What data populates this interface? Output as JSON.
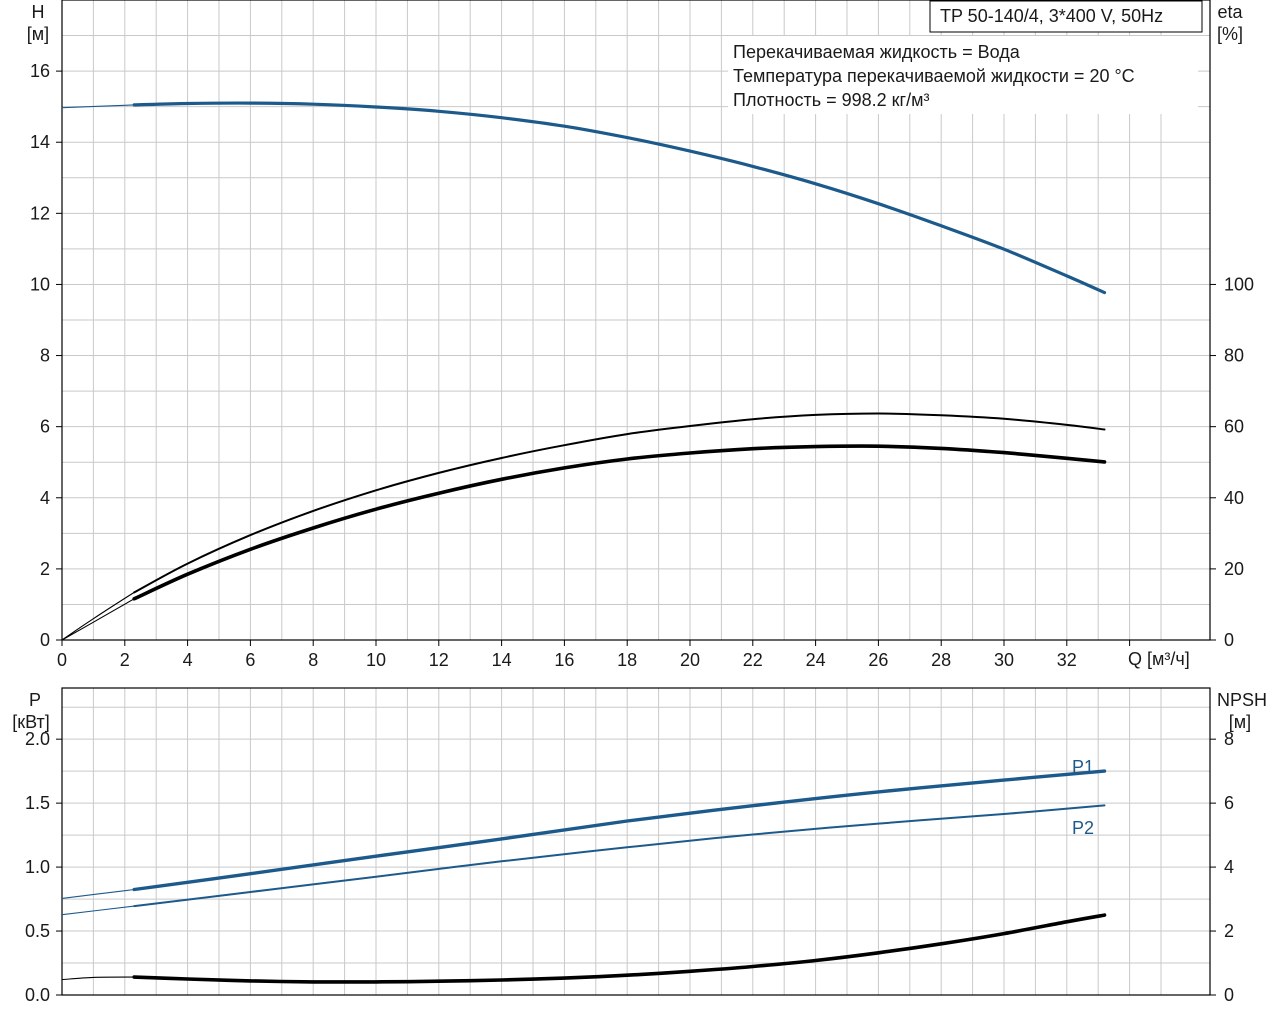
{
  "title_box": "TP 50-140/4, 3*400 V, 50Hz",
  "info": {
    "line1": "Перекачиваемая жидкость = Вода",
    "line2": "Температура перекачиваемой жидкости = 20 °C",
    "line3": "Плотность = 998.2 кг/м³"
  },
  "colors": {
    "blue": "#1d5a8c",
    "black": "#000000",
    "grid": "#c9c9c9"
  },
  "chart_data": [
    {
      "type": "line",
      "xlabel": "Q [м³/ч]",
      "ylabel_left_1": "H",
      "ylabel_left_2": "[м]",
      "ylabel_right_1": "eta",
      "ylabel_right_2": "[%]",
      "xlim": [
        0,
        36
      ],
      "ylim_left": [
        0,
        18
      ],
      "ylim_right": [
        0,
        180
      ],
      "x_ticks": [
        "0",
        "2",
        "4",
        "6",
        "8",
        "10",
        "12",
        "14",
        "16",
        "18",
        "20",
        "22",
        "24",
        "26",
        "28",
        "30",
        "32"
      ],
      "y_left_ticks": [
        "0",
        "2",
        "4",
        "6",
        "8",
        "10",
        "12",
        "14",
        "16"
      ],
      "y_right_ticks": [
        "0",
        "20",
        "40",
        "60",
        "80",
        "100"
      ],
      "grid": true,
      "series": [
        {
          "axis": "left",
          "color": "#1d5a8c",
          "width": 3.2,
          "thin_prefix": [
            [
              0,
              14.97
            ],
            [
              2.3,
              15.05
            ]
          ],
          "points": [
            [
              2.3,
              15.05
            ],
            [
              4,
              15.09
            ],
            [
              6,
              15.1
            ],
            [
              8,
              15.07
            ],
            [
              10,
              14.99
            ],
            [
              12,
              14.87
            ],
            [
              14,
              14.69
            ],
            [
              16,
              14.45
            ],
            [
              18,
              14.13
            ],
            [
              20,
              13.75
            ],
            [
              22,
              13.32
            ],
            [
              24,
              12.83
            ],
            [
              26,
              12.27
            ],
            [
              28,
              11.65
            ],
            [
              30,
              10.99
            ],
            [
              32,
              10.24
            ],
            [
              33.2,
              9.77
            ]
          ]
        },
        {
          "axis": "right",
          "color": "#000000",
          "width": 2.0,
          "thin_prefix": [
            [
              0,
              0
            ],
            [
              1,
              6
            ],
            [
              2.3,
              13.4
            ]
          ],
          "points": [
            [
              2.3,
              13.4
            ],
            [
              4,
              21.5
            ],
            [
              6,
              29.5
            ],
            [
              8,
              36.3
            ],
            [
              10,
              42.1
            ],
            [
              12,
              47.0
            ],
            [
              14,
              51.2
            ],
            [
              16,
              54.8
            ],
            [
              18,
              57.9
            ],
            [
              20,
              60.2
            ],
            [
              22,
              62.1
            ],
            [
              24,
              63.3
            ],
            [
              26,
              63.7
            ],
            [
              28,
              63.2
            ],
            [
              30,
              62.2
            ],
            [
              32,
              60.5
            ],
            [
              33.2,
              59.2
            ]
          ]
        },
        {
          "axis": "right",
          "color": "#000000",
          "width": 3.6,
          "thin_prefix": [
            [
              0,
              0
            ],
            [
              1,
              5
            ],
            [
              2.3,
              11.6
            ]
          ],
          "points": [
            [
              2.3,
              11.6
            ],
            [
              4,
              18.5
            ],
            [
              6,
              25.5
            ],
            [
              8,
              31.5
            ],
            [
              10,
              36.8
            ],
            [
              12,
              41.3
            ],
            [
              14,
              45.2
            ],
            [
              16,
              48.4
            ],
            [
              18,
              50.9
            ],
            [
              20,
              52.6
            ],
            [
              22,
              53.8
            ],
            [
              24,
              54.4
            ],
            [
              26,
              54.5
            ],
            [
              28,
              53.9
            ],
            [
              30,
              52.7
            ],
            [
              32,
              51.1
            ],
            [
              33.2,
              50.1
            ]
          ]
        }
      ]
    },
    {
      "type": "line",
      "ylabel_left_1": "P",
      "ylabel_left_2": "[кВт]",
      "ylabel_right_1": "NPSH",
      "ylabel_right_2": "[м]",
      "xlim": [
        0,
        36
      ],
      "ylim_left": [
        0,
        2.4
      ],
      "ylim_right": [
        0,
        9.6
      ],
      "y_left_ticks": [
        "0.0",
        "0.5",
        "1.0",
        "1.5",
        "2.0"
      ],
      "y_right_ticks": [
        "0",
        "2",
        "4",
        "6",
        "8"
      ],
      "grid": true,
      "series": [
        {
          "name": "P1",
          "axis": "left",
          "color": "#1d5a8c",
          "width": 3.4,
          "thin_prefix": [
            [
              0,
              0.755
            ],
            [
              2.3,
              0.825
            ]
          ],
          "points": [
            [
              2.3,
              0.825
            ],
            [
              6,
              0.948
            ],
            [
              10,
              1.085
            ],
            [
              14,
              1.22
            ],
            [
              18,
              1.36
            ],
            [
              22,
              1.48
            ],
            [
              26,
              1.588
            ],
            [
              30,
              1.68
            ],
            [
              33.2,
              1.75
            ]
          ]
        },
        {
          "name": "P2",
          "axis": "left",
          "color": "#1d5a8c",
          "width": 2.0,
          "thin_prefix": [
            [
              0,
              0.628
            ],
            [
              2.3,
              0.695
            ]
          ],
          "points": [
            [
              2.3,
              0.695
            ],
            [
              6,
              0.805
            ],
            [
              10,
              0.925
            ],
            [
              14,
              1.045
            ],
            [
              18,
              1.155
            ],
            [
              22,
              1.255
            ],
            [
              26,
              1.34
            ],
            [
              30,
              1.415
            ],
            [
              33.2,
              1.482
            ]
          ]
        },
        {
          "axis": "right",
          "color": "#000000",
          "width": 3.6,
          "thin_prefix": [
            [
              0,
              0.48
            ],
            [
              1,
              0.55
            ],
            [
              2.3,
              0.56
            ]
          ],
          "points": [
            [
              2.3,
              0.56
            ],
            [
              4,
              0.5
            ],
            [
              6,
              0.44
            ],
            [
              8,
              0.41
            ],
            [
              10,
              0.41
            ],
            [
              12,
              0.43
            ],
            [
              14,
              0.47
            ],
            [
              16,
              0.53
            ],
            [
              18,
              0.62
            ],
            [
              20,
              0.74
            ],
            [
              22,
              0.89
            ],
            [
              24,
              1.08
            ],
            [
              26,
              1.32
            ],
            [
              28,
              1.6
            ],
            [
              30,
              1.92
            ],
            [
              32,
              2.29
            ],
            [
              33.2,
              2.5
            ]
          ]
        }
      ]
    }
  ]
}
